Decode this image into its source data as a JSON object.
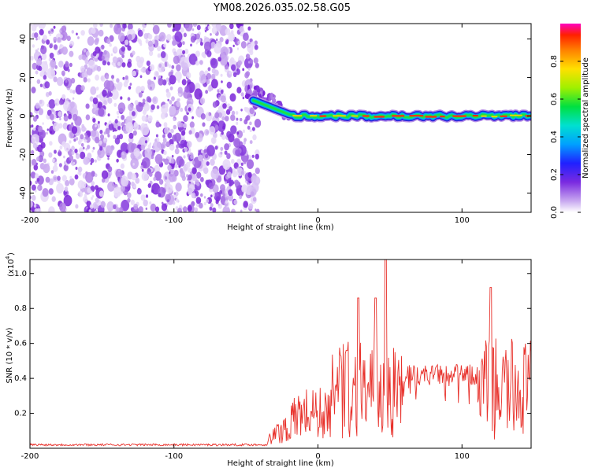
{
  "page_title": "YM08.2026.035.02.58.G05",
  "chart_data": [
    {
      "type": "heatmap",
      "name": "spectrogram",
      "xlabel": "Height of straight line (km)",
      "ylabel": "Frequency (Hz)",
      "xlim": [
        -200,
        148
      ],
      "ylim": [
        -50,
        48
      ],
      "x_ticks": [
        -200,
        -100,
        0,
        100
      ],
      "y_ticks": [
        40,
        20,
        0,
        -20,
        -40
      ],
      "noise_region_x": [
        -200,
        -45
      ],
      "transition_x": [
        -45,
        -20
      ],
      "signal_band_hz": 0,
      "colorbar": {
        "label": "Normalized spectral amplitude",
        "range": [
          0.0,
          1.0
        ],
        "ticks": [
          "0.0",
          "0.2",
          "0.4",
          "0.6",
          "0.8"
        ]
      }
    },
    {
      "type": "line",
      "name": "snr",
      "xlabel": "Height of straight line (km)",
      "ylabel": "SNR (10 * v/v)",
      "scale_label": "(x10",
      "scale_exp": "4",
      "xlim": [
        -200,
        148
      ],
      "ylim": [
        0,
        1.08
      ],
      "x_ticks": [
        -200,
        -100,
        0,
        100
      ],
      "y_ticks": [
        "0.2",
        "0.4",
        "0.6",
        "0.8",
        "1.0"
      ],
      "series_color": "#e8322c",
      "noise_floor": 0.02,
      "onset_x": -35,
      "peaks": [
        {
          "x": 20,
          "y": 0.56
        },
        {
          "x": 28,
          "y": 0.86
        },
        {
          "x": 40,
          "y": 0.86
        },
        {
          "x": 47,
          "y": 1.08
        },
        {
          "x": 120,
          "y": 0.92
        }
      ],
      "plateau": {
        "x": [
          60,
          110
        ],
        "y": 0.42
      }
    }
  ]
}
